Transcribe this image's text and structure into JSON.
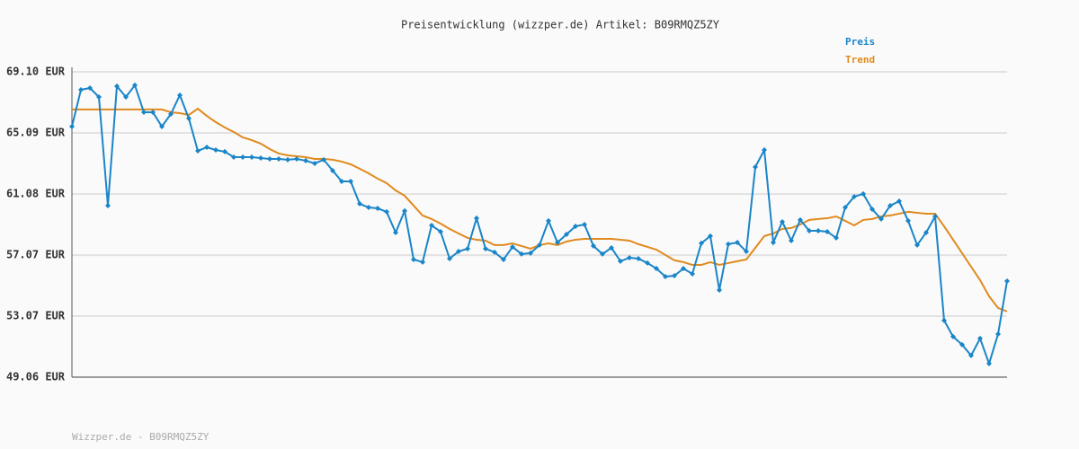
{
  "chart_data": {
    "type": "line",
    "title": "Preisentwicklung (wizzper.de) Artikel: B09RMQZ5ZY",
    "footer": "Wizzper.de - B09RMQZ5ZY",
    "ylim": [
      49.06,
      69.1
    ],
    "yticks": [
      {
        "value": 49.06,
        "label": "49.06 EUR"
      },
      {
        "value": 53.07,
        "label": "53.07 EUR"
      },
      {
        "value": 57.07,
        "label": "57.07 EUR"
      },
      {
        "value": 61.08,
        "label": "61.08 EUR"
      },
      {
        "value": 65.09,
        "label": "65.09 EUR"
      },
      {
        "value": 69.1,
        "label": "69.10 EUR"
      }
    ],
    "grid": true,
    "legend": "top-right",
    "series": [
      {
        "name": "Preis",
        "color": "#1a85c8",
        "markers": true,
        "values": [
          65.51,
          67.92,
          68.04,
          67.45,
          60.32,
          68.16,
          67.45,
          68.22,
          66.45,
          66.45,
          65.51,
          66.33,
          67.57,
          66.04,
          63.91,
          64.15,
          63.97,
          63.86,
          63.5,
          63.5,
          63.5,
          63.44,
          63.38,
          63.38,
          63.33,
          63.38,
          63.27,
          63.09,
          63.33,
          62.62,
          61.91,
          61.91,
          60.44,
          60.2,
          60.14,
          59.91,
          58.55,
          59.97,
          56.78,
          56.61,
          59.02,
          58.61,
          56.84,
          57.31,
          57.49,
          59.49,
          57.49,
          57.26,
          56.78,
          57.61,
          57.14,
          57.2,
          57.73,
          59.32,
          57.9,
          58.43,
          58.96,
          59.08,
          57.67,
          57.14,
          57.55,
          56.67,
          56.9,
          56.84,
          56.55,
          56.19,
          55.66,
          55.72,
          56.19,
          55.84,
          57.85,
          58.32,
          54.78,
          57.79,
          57.9,
          57.31,
          62.85,
          63.97,
          57.9,
          59.26,
          58.02,
          59.38,
          58.67,
          58.67,
          58.61,
          58.2,
          60.2,
          60.91,
          61.09,
          60.08,
          59.44,
          60.32,
          60.61,
          59.32,
          57.73,
          58.55,
          59.61,
          52.78,
          51.72,
          51.19,
          50.48,
          51.6,
          49.95,
          51.89,
          55.37
        ]
      },
      {
        "name": "Trend",
        "color": "#e08a1e",
        "markers": false,
        "values": [
          66.63,
          66.63,
          66.63,
          66.63,
          66.63,
          66.63,
          66.63,
          66.63,
          66.63,
          66.63,
          66.63,
          66.45,
          66.39,
          66.27,
          66.68,
          66.21,
          65.8,
          65.45,
          65.15,
          64.8,
          64.62,
          64.39,
          64.03,
          63.74,
          63.62,
          63.56,
          63.5,
          63.38,
          63.38,
          63.33,
          63.21,
          63.03,
          62.74,
          62.44,
          62.09,
          61.79,
          61.32,
          60.97,
          60.32,
          59.67,
          59.44,
          59.14,
          58.79,
          58.49,
          58.2,
          58.08,
          58.02,
          57.73,
          57.73,
          57.84,
          57.67,
          57.49,
          57.73,
          57.84,
          57.73,
          57.96,
          58.08,
          58.14,
          58.14,
          58.14,
          58.14,
          58.08,
          58.02,
          57.79,
          57.61,
          57.43,
          57.08,
          56.73,
          56.61,
          56.43,
          56.43,
          56.61,
          56.43,
          56.55,
          56.67,
          56.78,
          57.55,
          58.32,
          58.49,
          58.79,
          58.85,
          59.08,
          59.38,
          59.44,
          59.49,
          59.61,
          59.32,
          59.02,
          59.38,
          59.44,
          59.61,
          59.67,
          59.79,
          59.91,
          59.85,
          59.79,
          59.79,
          58.96,
          58.08,
          57.2,
          56.31,
          55.43,
          54.37,
          53.6,
          53.37
        ]
      }
    ]
  }
}
